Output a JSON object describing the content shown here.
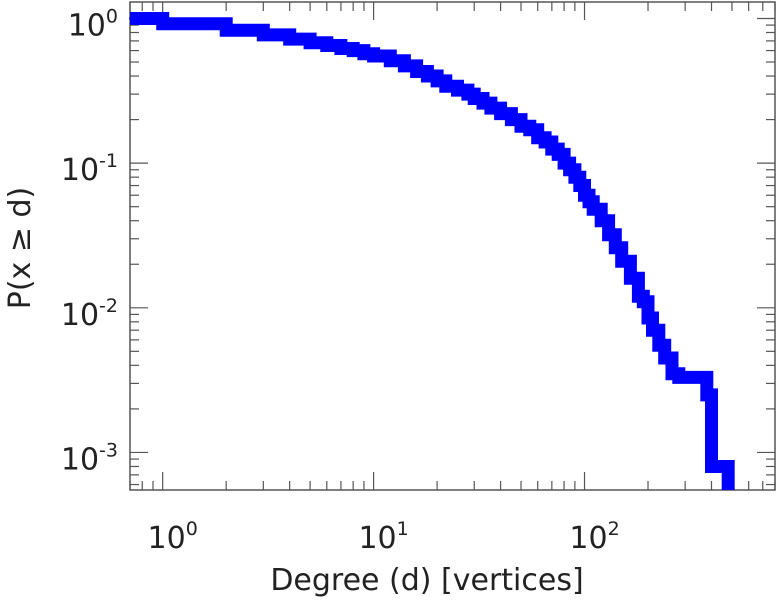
{
  "chart_data": {
    "type": "line",
    "step": true,
    "title": "",
    "xlabel": "Degree (d) [vertices]",
    "ylabel": "P(x ≥ d)",
    "x_scale": "log",
    "y_scale": "log",
    "xlim": [
      0.7,
      800
    ],
    "ylim": [
      0.00055,
      1.3
    ],
    "grid": false,
    "colors": {
      "series": "#0000ff",
      "axis": "#555555"
    },
    "x_ticks": [
      {
        "value": 1,
        "base": "10",
        "exp": "0"
      },
      {
        "value": 10,
        "base": "10",
        "exp": "1"
      },
      {
        "value": 100,
        "base": "10",
        "exp": "2"
      }
    ],
    "y_ticks": [
      {
        "value": 1,
        "base": "10",
        "exp": "0"
      },
      {
        "value": 0.1,
        "base": "10",
        "exp": "-1"
      },
      {
        "value": 0.01,
        "base": "10",
        "exp": "-2"
      },
      {
        "value": 0.001,
        "base": "10",
        "exp": "-3"
      }
    ],
    "series": [
      {
        "x": [
          0.7,
          1,
          2,
          3,
          4,
          5,
          6,
          7,
          8,
          9,
          10,
          12,
          14,
          16,
          18,
          20,
          22,
          25,
          28,
          30,
          33,
          36,
          40,
          45,
          50,
          55,
          60,
          65,
          70,
          75,
          80,
          85,
          90,
          95,
          100,
          105,
          110,
          120,
          130,
          140,
          150,
          165,
          180,
          190,
          200,
          210,
          225,
          240,
          260,
          280,
          300,
          330,
          350,
          380,
          400,
          450,
          480
        ],
        "y": [
          1,
          0.92,
          0.83,
          0.77,
          0.72,
          0.68,
          0.65,
          0.62,
          0.6,
          0.57,
          0.55,
          0.51,
          0.47,
          0.43,
          0.4,
          0.37,
          0.34,
          0.32,
          0.3,
          0.28,
          0.26,
          0.24,
          0.22,
          0.2,
          0.18,
          0.17,
          0.15,
          0.14,
          0.125,
          0.115,
          0.1,
          0.09,
          0.08,
          0.07,
          0.06,
          0.054,
          0.048,
          0.04,
          0.032,
          0.026,
          0.021,
          0.016,
          0.012,
          0.011,
          0.0085,
          0.007,
          0.0055,
          0.0045,
          0.0035,
          0.0033,
          0.0033,
          0.0033,
          0.0033,
          0.0025,
          0.0008,
          0.0008,
          0.0008
        ]
      }
    ]
  }
}
